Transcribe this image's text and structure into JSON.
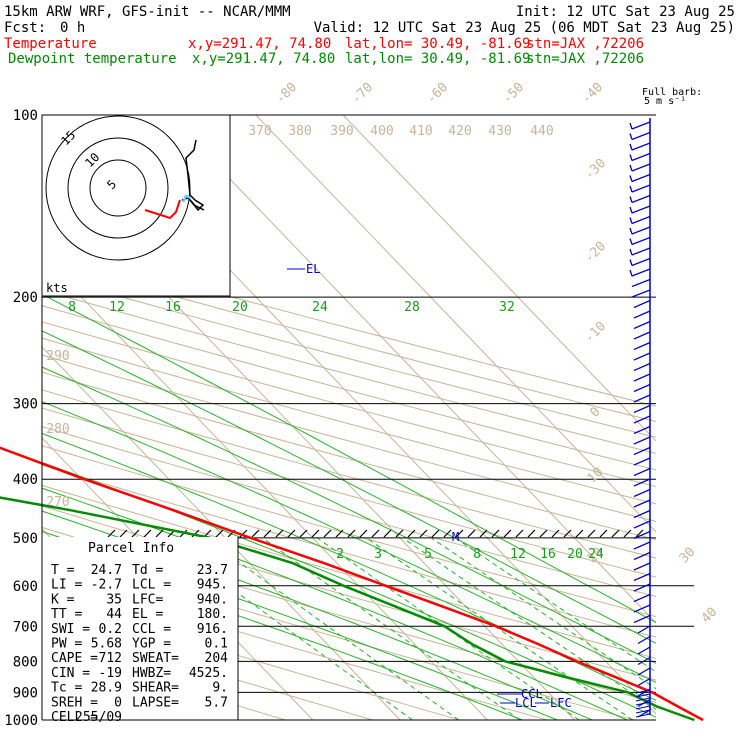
{
  "header": {
    "model": "15km ARW WRF, GFS-init  -- NCAR/MMM",
    "init": "Init: 12 UTC Sat 23 Aug 25",
    "fcst_label": "Fcst:",
    "fcst_value": "0 h",
    "valid": "Valid: 12 UTC Sat 23 Aug 25 (06 MDT Sat 23 Aug 25)",
    "temp_line": {
      "label": "Temperature",
      "xy": "x,y=291.47, 74.80",
      "latlon": "lat,lon= 30.49, -81.69",
      "stn": "stn=JAX ,72206"
    },
    "dew_line": {
      "label": "Dewpoint temperature",
      "xy": "x,y=291.47, 74.80",
      "latlon": "lat,lon= 30.49, -81.69",
      "stn": "stn=JAX ,72206"
    }
  },
  "barb_legend": {
    "title": "Full barb:",
    "units": "5 m s⁻¹"
  },
  "hodograph": {
    "units": "kts",
    "ring_labels": [
      "5",
      "10",
      "15"
    ]
  },
  "parcel_info": {
    "title": "Parcel Info",
    "rows": [
      [
        "T  =",
        "24.7",
        "Td =",
        "23.7"
      ],
      [
        "LI =",
        "-2.7",
        "LCL =",
        "945."
      ],
      [
        "K  =",
        "35",
        "LFC=",
        "940."
      ],
      [
        "TT =",
        "44",
        "EL =",
        "180."
      ],
      [
        "SWI =",
        "0.2",
        "CCL =",
        "916."
      ],
      [
        "PW =",
        "5.68",
        "YGP =",
        "0.1"
      ],
      [
        "CAPE =",
        "712",
        "SWEAT=",
        "204"
      ],
      [
        "CIN =",
        "-19",
        "HWBZ=",
        "4525."
      ],
      [
        "Tc =",
        "28.9",
        "SHEAR=",
        "9."
      ],
      [
        "SREH =",
        "0",
        "LAPSE=",
        "5.7"
      ],
      [
        "CELL =",
        "255/09",
        "",
        ""
      ]
    ]
  },
  "chart_data": {
    "type": "line",
    "title": "",
    "xlabel": "",
    "ylabel": "",
    "y_scale": "log-pressure",
    "pressure_levels": [
      100,
      200,
      300,
      400,
      500,
      600,
      700,
      800,
      900,
      1000
    ],
    "pressure_tick_labels": [
      "100",
      "200",
      "300",
      "400",
      "500",
      "600",
      "700",
      "800",
      "900",
      "1000"
    ],
    "isotherm_labels": [
      "-80",
      "-70",
      "-60",
      "-50",
      "-40",
      "-30",
      "-20",
      "-10",
      "0",
      "10",
      "20",
      "30",
      "40"
    ],
    "theta_labels": [
      "370",
      "380",
      "390",
      "400",
      "410",
      "420",
      "430",
      "440",
      "290",
      "280",
      "270"
    ],
    "wetbulb_labels": [
      "8",
      "12",
      "16",
      "20",
      "24",
      "28",
      "32"
    ],
    "mixing_ratio_labels": [
      "2",
      "3",
      "5",
      "8",
      "12",
      "16",
      "20",
      "24"
    ],
    "level_markers": [
      "EL",
      "M",
      "CCL",
      "LCL",
      "LFC"
    ],
    "series": [
      {
        "name": "Temperature",
        "color": "#ff0000",
        "points": [
          [
            100,
            -72.0
          ],
          [
            120,
            -69.0
          ],
          [
            150,
            -69.5
          ],
          [
            170,
            -70.5
          ],
          [
            180,
            -70.0
          ],
          [
            200,
            -62.3
          ],
          [
            250,
            -45.5
          ],
          [
            300,
            -35.9
          ],
          [
            350,
            -26.6
          ],
          [
            400,
            -19.7
          ],
          [
            450,
            -12.9
          ],
          [
            500,
            -7.1
          ],
          [
            550,
            -1.5
          ],
          [
            600,
            3.1
          ],
          [
            650,
            7.4
          ],
          [
            700,
            11.3
          ],
          [
            750,
            14.2
          ],
          [
            800,
            16.7
          ],
          [
            850,
            19.4
          ],
          [
            900,
            21.9
          ],
          [
            950,
            23.3
          ],
          [
            1000,
            24.7
          ]
        ]
      },
      {
        "name": "Dewpoint temperature",
        "color": "#008c00",
        "points": [
          [
            100,
            -93.8
          ],
          [
            150,
            -89.8
          ],
          [
            200,
            -75.5
          ],
          [
            250,
            -60.0
          ],
          [
            300,
            -48.2
          ],
          [
            350,
            -39.5
          ],
          [
            380,
            -42.9
          ],
          [
            400,
            -41.1
          ],
          [
            450,
            -24.7
          ],
          [
            500,
            -11.7
          ],
          [
            550,
            -5.1
          ],
          [
            600,
            -1.7
          ],
          [
            650,
            2.0
          ],
          [
            700,
            5.4
          ],
          [
            750,
            6.6
          ],
          [
            800,
            8.5
          ],
          [
            850,
            13.8
          ],
          [
            900,
            19.1
          ],
          [
            950,
            20.9
          ],
          [
            1000,
            23.7
          ]
        ]
      }
    ],
    "grid": true
  }
}
